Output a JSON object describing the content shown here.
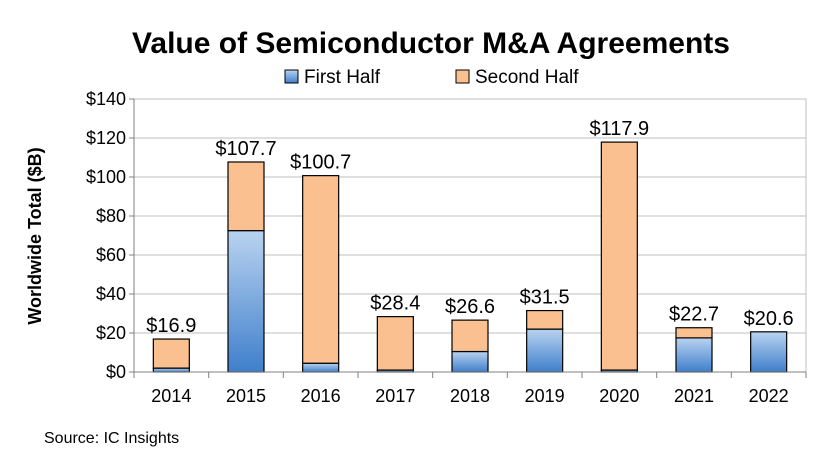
{
  "chart_data": {
    "type": "bar",
    "stacked": true,
    "title": "Value of Semiconductor M&A Agreements",
    "ylabel": "Worldwide Total ($B)",
    "xlabel": "",
    "categories": [
      "2014",
      "2015",
      "2016",
      "2017",
      "2018",
      "2019",
      "2020",
      "2021",
      "2022"
    ],
    "series": [
      {
        "name": "First Half",
        "values": [
          2,
          72.5,
          4.5,
          1,
          10.5,
          22,
          1,
          17.5,
          20.6
        ],
        "color": "#5b9bd5"
      },
      {
        "name": "Second Half",
        "values": [
          14.9,
          35.2,
          96.2,
          27.4,
          16.1,
          9.5,
          116.9,
          5.2,
          0
        ],
        "color": "#fac090"
      }
    ],
    "totals": [
      16.9,
      107.7,
      100.7,
      28.4,
      26.6,
      31.5,
      117.9,
      22.7,
      20.6
    ],
    "total_labels": [
      "$16.9",
      "$107.7",
      "$100.7",
      "$28.4",
      "$26.6",
      "$31.5",
      "$117.9",
      "$22.7",
      "$20.6"
    ],
    "ylim": [
      0,
      140
    ],
    "yticks": [
      0,
      20,
      40,
      60,
      80,
      100,
      120,
      140
    ],
    "ytick_labels": [
      "$0",
      "$20",
      "$40",
      "$60",
      "$80",
      "$100",
      "$120",
      "$140"
    ],
    "grid": true,
    "legend_position": "top"
  },
  "source": "Source: IC Insights"
}
